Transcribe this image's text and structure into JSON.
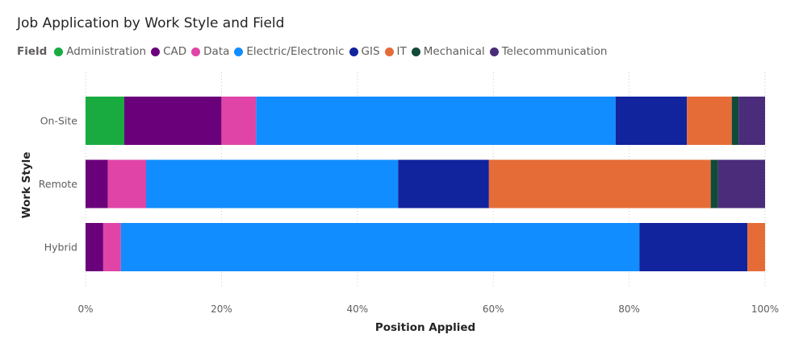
{
  "chart_data": {
    "type": "bar",
    "orientation": "horizontal",
    "stacked": "100%",
    "title": "Job Application by Work Style and Field",
    "legend_title": "Field",
    "legend_position": "top-left",
    "xlabel": "Position Applied",
    "ylabel": "Work Style",
    "xlim": [
      0,
      100
    ],
    "x_ticks": [
      "0%",
      "20%",
      "40%",
      "60%",
      "80%",
      "100%"
    ],
    "x_tick_values": [
      0,
      20,
      40,
      60,
      80,
      100
    ],
    "grid": "vertical dotted",
    "categories": [
      "On-Site",
      "Remote",
      "Hybrid"
    ],
    "series": [
      {
        "name": "Administration",
        "color": "#1aab40",
        "values": [
          5.7,
          0,
          0
        ]
      },
      {
        "name": "CAD",
        "color": "#6b007b",
        "values": [
          14.3,
          3.6,
          2.6
        ]
      },
      {
        "name": "Data",
        "color": "#e044a7",
        "values": [
          5.1,
          6.2,
          2.6
        ]
      },
      {
        "name": "Electric/Electronic",
        "color": "#118dff",
        "values": [
          52.9,
          40.8,
          76.3
        ]
      },
      {
        "name": "GIS",
        "color": "#12239e",
        "values": [
          10.5,
          14.7,
          15.9
        ]
      },
      {
        "name": "IT",
        "color": "#e66c37",
        "values": [
          6.6,
          35.9,
          2.6
        ]
      },
      {
        "name": "Mechanical",
        "color": "#124a3a",
        "values": [
          1.0,
          1.2,
          0
        ]
      },
      {
        "name": "Telecommunication",
        "color": "#4a2c7a",
        "values": [
          3.9,
          7.6,
          0
        ]
      }
    ]
  }
}
